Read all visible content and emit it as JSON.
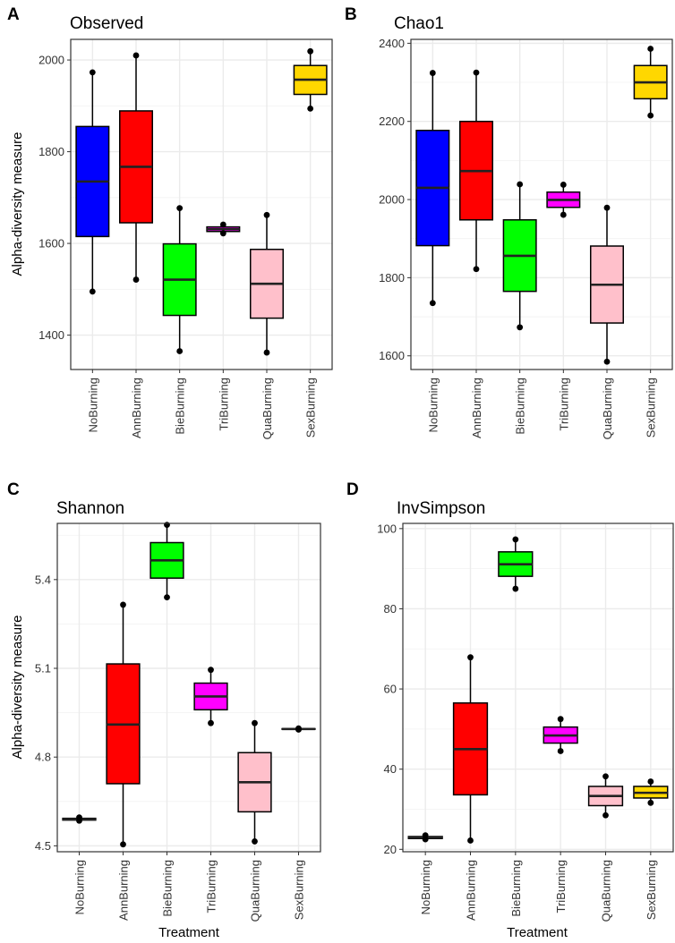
{
  "treatments": [
    "NoBurning",
    "AnnBurning",
    "BieBurning",
    "TriBurning",
    "QuaBurning",
    "SexBurning"
  ],
  "colors": {
    "NoBurning": "#0000ff",
    "AnnBurning": "#ff0000",
    "BieBurning": "#00ff00",
    "TriBurning": "#ff00ff",
    "QuaBurning": "#ffc0cb",
    "SexBurning": "#ffd700",
    "grid": "#ebebeb",
    "border": "#333333"
  },
  "chart_data": [
    {
      "panel": "A",
      "type": "boxplot",
      "title": "Observed",
      "xlabel": "",
      "ylabel": "Alpha-diversity measure",
      "ylim": [
        1325,
        2045
      ],
      "yticks": [
        1400,
        1600,
        1800,
        2000
      ],
      "ytick_labels": [
        "1400",
        "1600",
        "1800",
        "2000"
      ],
      "categories": [
        "NoBurning",
        "AnnBurning",
        "BieBurning",
        "TriBurning",
        "QuaBurning",
        "SexBurning"
      ],
      "boxes": [
        {
          "min": 1495,
          "q1": 1615,
          "median": 1735,
          "q3": 1855,
          "max": 1973,
          "outliers": []
        },
        {
          "min": 1521,
          "q1": 1645,
          "median": 1767,
          "q3": 1889,
          "max": 2010,
          "outliers": []
        },
        {
          "min": 1365,
          "q1": 1443,
          "median": 1521,
          "q3": 1599,
          "max": 1677,
          "outliers": []
        },
        {
          "min": 1622,
          "q1": 1626,
          "median": 1631,
          "q3": 1636,
          "max": 1641,
          "outliers": []
        },
        {
          "min": 1362,
          "q1": 1437,
          "median": 1512,
          "q3": 1587,
          "max": 1662,
          "outliers": []
        },
        {
          "min": 1894,
          "q1": 1925,
          "median": 1957,
          "q3": 1988,
          "max": 2019,
          "outliers": []
        }
      ]
    },
    {
      "panel": "B",
      "type": "boxplot",
      "title": "Chao1",
      "xlabel": "",
      "ylabel": "",
      "ylim": [
        1565,
        2410
      ],
      "yticks": [
        1600,
        1800,
        2000,
        2200,
        2400
      ],
      "ytick_labels": [
        "1600",
        "1800",
        "2000",
        "2200",
        "2400"
      ],
      "categories": [
        "NoBurning",
        "AnnBurning",
        "BieBurning",
        "TriBurning",
        "QuaBurning",
        "SexBurning"
      ],
      "boxes": [
        {
          "min": 1735,
          "q1": 1882,
          "median": 2030,
          "q3": 2177,
          "max": 2324,
          "outliers": []
        },
        {
          "min": 1822,
          "q1": 1948,
          "median": 2073,
          "q3": 2200,
          "max": 2325,
          "outliers": []
        },
        {
          "min": 1673,
          "q1": 1765,
          "median": 1856,
          "q3": 1948,
          "max": 2039,
          "outliers": []
        },
        {
          "min": 1961,
          "q1": 1980,
          "median": 1999,
          "q3": 2019,
          "max": 2038,
          "outliers": []
        },
        {
          "min": 1585,
          "q1": 1684,
          "median": 1782,
          "q3": 1881,
          "max": 1979,
          "outliers": []
        },
        {
          "min": 2215,
          "q1": 2258,
          "median": 2300,
          "q3": 2343,
          "max": 2386,
          "outliers": []
        }
      ]
    },
    {
      "panel": "C",
      "type": "boxplot",
      "title": "Shannon",
      "xlabel": "Treatment",
      "ylabel": "Alpha-diversity measure",
      "ylim": [
        4.48,
        5.59
      ],
      "yticks": [
        4.5,
        4.8,
        5.1,
        5.4
      ],
      "ytick_labels": [
        "4.5",
        "4.8",
        "5.1",
        "5.4"
      ],
      "categories": [
        "NoBurning",
        "AnnBurning",
        "BieBurning",
        "TriBurning",
        "QuaBurning",
        "SexBurning"
      ],
      "boxes": [
        {
          "min": 4.585,
          "q1": 4.587,
          "median": 4.59,
          "q3": 4.593,
          "max": 4.596,
          "outliers": []
        },
        {
          "min": 4.505,
          "q1": 4.71,
          "median": 4.91,
          "q3": 5.115,
          "max": 5.315,
          "outliers": []
        },
        {
          "min": 5.34,
          "q1": 5.405,
          "median": 5.465,
          "q3": 5.525,
          "max": 5.585,
          "outliers": []
        },
        {
          "min": 4.915,
          "q1": 4.96,
          "median": 5.005,
          "q3": 5.05,
          "max": 5.095,
          "outliers": []
        },
        {
          "min": 4.515,
          "q1": 4.615,
          "median": 4.715,
          "q3": 4.815,
          "max": 4.915,
          "outliers": []
        },
        {
          "min": 4.893,
          "q1": 4.894,
          "median": 4.895,
          "q3": 4.896,
          "max": 4.897,
          "outliers": []
        }
      ]
    },
    {
      "panel": "D",
      "type": "boxplot",
      "title": "InvSimpson",
      "xlabel": "Treatment",
      "ylabel": "",
      "ylim": [
        19.4,
        101.3
      ],
      "yticks": [
        20,
        40,
        60,
        80,
        100
      ],
      "ytick_labels": [
        "20",
        "40",
        "60",
        "80",
        "100"
      ],
      "categories": [
        "NoBurning",
        "AnnBurning",
        "BieBurning",
        "TriBurning",
        "QuaBurning",
        "SexBurning"
      ],
      "boxes": [
        {
          "min": 22.5,
          "q1": 22.7,
          "median": 23.0,
          "q3": 23.2,
          "max": 23.5,
          "outliers": []
        },
        {
          "min": 22.2,
          "q1": 33.6,
          "median": 45.0,
          "q3": 56.5,
          "max": 67.9,
          "outliers": []
        },
        {
          "min": 85.0,
          "q1": 88.1,
          "median": 91.1,
          "q3": 94.2,
          "max": 97.3,
          "outliers": []
        },
        {
          "min": 44.5,
          "q1": 46.5,
          "median": 48.4,
          "q3": 50.5,
          "max": 52.5,
          "outliers": []
        },
        {
          "min": 28.5,
          "q1": 30.9,
          "median": 33.3,
          "q3": 35.7,
          "max": 38.2,
          "outliers": []
        },
        {
          "min": 31.6,
          "q1": 32.8,
          "median": 34.1,
          "q3": 35.7,
          "max": 36.9,
          "outliers": []
        }
      ]
    }
  ]
}
